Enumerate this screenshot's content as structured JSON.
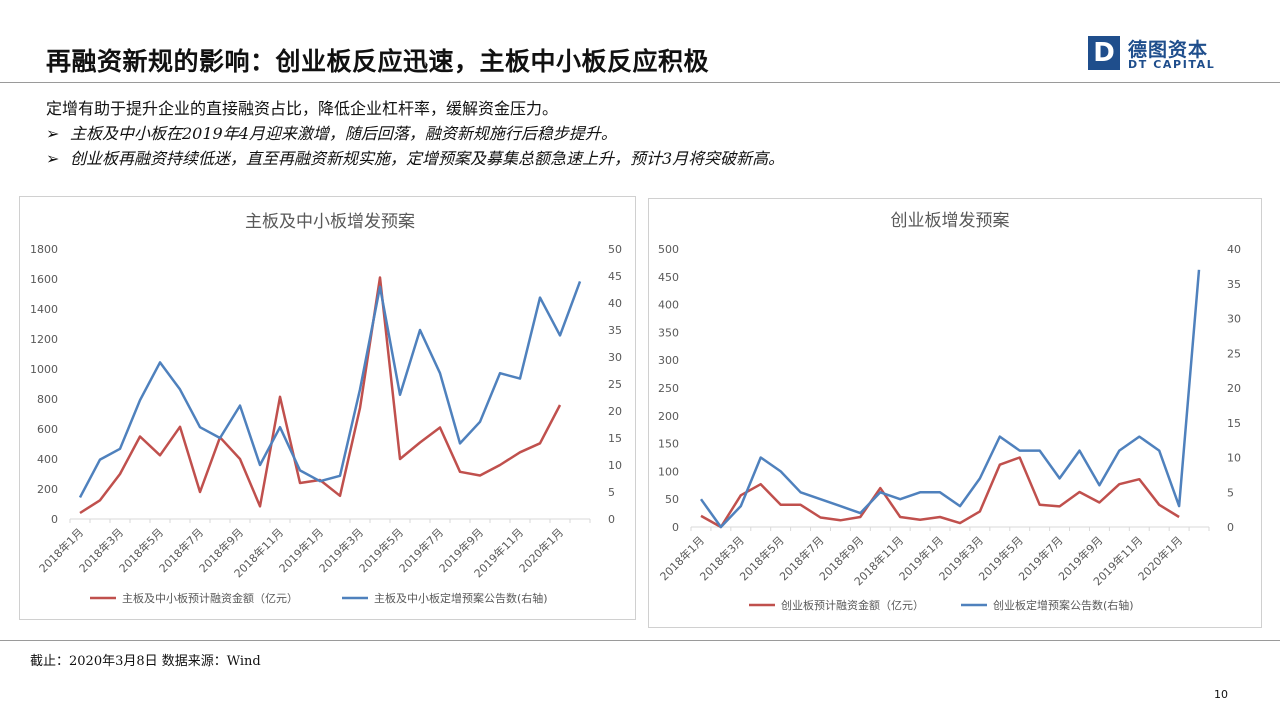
{
  "header": {
    "title": "再融资新规的影响：创业板反应迅速，主板中小板反应积极",
    "logo_cn": "德图资本",
    "logo_en": "DT CAPITAL",
    "logo_mark": "D"
  },
  "summary": {
    "intro": "定增有助于提升企业的直接融资占比，降低企业杠杆率，缓解资金压力。",
    "bullets": [
      "主板及中小板在2019年4月迎来激增，随后回落，融资新规施行后稳步提升。",
      "创业板再融资持续低迷，直至再融资新规实施，定增预案及募集总额急速上升，预计3月将突破新高。"
    ],
    "bullet_marker": "➢"
  },
  "footer": {
    "source": "截止：2020年3月8日 数据来源：Wind",
    "page": "10"
  },
  "colors": {
    "red": "#c0504d",
    "blue": "#4f81bd",
    "axis": "#d9d9d9"
  },
  "chart_data": [
    {
      "type": "line",
      "title": "主板及中小板增发预案",
      "x": [
        "2018年1月",
        "2018年2月",
        "2018年3月",
        "2018年4月",
        "2018年5月",
        "2018年6月",
        "2018年7月",
        "2018年8月",
        "2018年9月",
        "2018年10月",
        "2018年11月",
        "2018年12月",
        "2019年1月",
        "2019年2月",
        "2019年3月",
        "2019年4月",
        "2019年5月",
        "2019年6月",
        "2019年7月",
        "2019年8月",
        "2019年9月",
        "2019年10月",
        "2019年11月",
        "2019年12月",
        "2020年1月",
        "2020年2月"
      ],
      "x_tick_labels": [
        "2018年1月",
        "2018年3月",
        "2018年5月",
        "2018年7月",
        "2018年9月",
        "2018年11月",
        "2019年1月",
        "2019年3月",
        "2019年5月",
        "2019年7月",
        "2019年9月",
        "2019年11月",
        "2020年1月"
      ],
      "y_left_ticks": [
        "0",
        "200",
        "400",
        "600",
        "800",
        "1000",
        "1200",
        "1400",
        "1600",
        "1800"
      ],
      "y_right_ticks": [
        "0",
        "5",
        "10",
        "15",
        "20",
        "25",
        "30",
        "35",
        "40",
        "45",
        "50"
      ],
      "ylim_left": [
        0,
        1800
      ],
      "ylim_right": [
        0,
        50
      ],
      "series": [
        {
          "name": "主板及中小板预计融资金额（亿元）",
          "axis": "left",
          "values": [
            40,
            125,
            300,
            550,
            425,
            615,
            180,
            545,
            400,
            85,
            815,
            240,
            260,
            155,
            740,
            1610,
            400,
            510,
            610,
            315,
            290,
            360,
            445,
            505,
            760,
            null
          ]
        },
        {
          "name": "主板及中小板定增预案公告数(右轴)",
          "axis": "right",
          "values": [
            4,
            11,
            13,
            22,
            29,
            24,
            17,
            15,
            21,
            10,
            17,
            9,
            7,
            8,
            24,
            43,
            23,
            35,
            27,
            14,
            18,
            27,
            26,
            41,
            34,
            44
          ]
        }
      ]
    },
    {
      "type": "line",
      "title": "创业板增发预案",
      "x": [
        "2018年1月",
        "2018年2月",
        "2018年3月",
        "2018年4月",
        "2018年5月",
        "2018年6月",
        "2018年7月",
        "2018年8月",
        "2018年9月",
        "2018年10月",
        "2018年11月",
        "2018年12月",
        "2019年1月",
        "2019年2月",
        "2019年3月",
        "2019年4月",
        "2019年5月",
        "2019年6月",
        "2019年7月",
        "2019年8月",
        "2019年9月",
        "2019年10月",
        "2019年11月",
        "2019年12月",
        "2020年1月",
        "2020年2月"
      ],
      "x_tick_labels": [
        "2018年1月",
        "2018年3月",
        "2018年5月",
        "2018年7月",
        "2018年9月",
        "2018年11月",
        "2019年1月",
        "2019年3月",
        "2019年5月",
        "2019年7月",
        "2019年9月",
        "2019年11月",
        "2020年1月"
      ],
      "y_left_ticks": [
        "0",
        "50",
        "100",
        "150",
        "200",
        "250",
        "300",
        "350",
        "400",
        "450",
        "500"
      ],
      "y_right_ticks": [
        "0",
        "5",
        "10",
        "15",
        "20",
        "25",
        "30",
        "35",
        "40"
      ],
      "ylim_left": [
        0,
        500
      ],
      "ylim_right": [
        0,
        40
      ],
      "series": [
        {
          "name": "创业板预计融资金额（亿元）",
          "axis": "left",
          "values": [
            20,
            0,
            57,
            77,
            40,
            40,
            17,
            12,
            18,
            70,
            18,
            13,
            18,
            7,
            28,
            112,
            125,
            40,
            37,
            63,
            44,
            77,
            86,
            40,
            18,
            null
          ]
        },
        {
          "name": "创业板定增预案公告数(右轴)",
          "axis": "right",
          "values": [
            4,
            0,
            3,
            10,
            8,
            5,
            4,
            3,
            2,
            5,
            4,
            5,
            5,
            3,
            7,
            13,
            11,
            11,
            7,
            11,
            6,
            11,
            13,
            11,
            3,
            37
          ]
        }
      ]
    }
  ]
}
